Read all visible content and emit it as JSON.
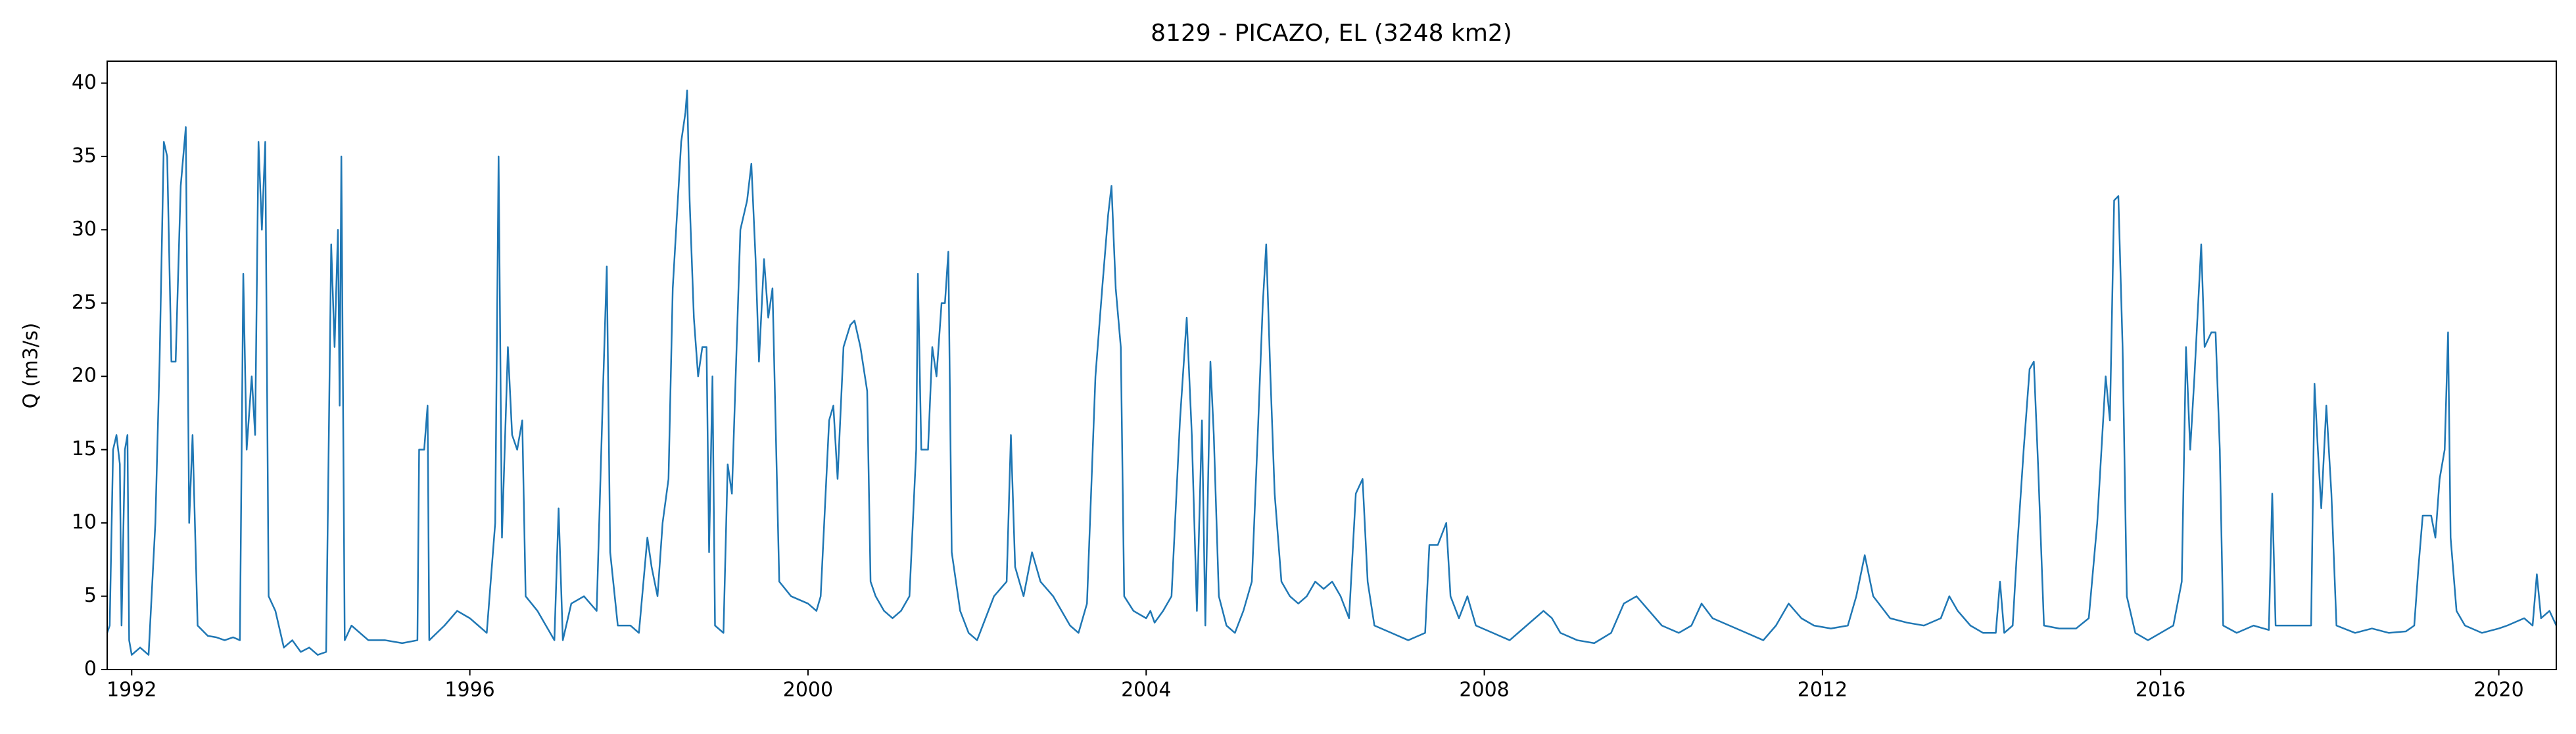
{
  "chart_data": {
    "type": "line",
    "title": "8129 - PICAZO, EL (3248 km2)",
    "y_label": "Q (m3/s)",
    "color": "#1f77b4",
    "xlim": [
      1991.71,
      2020.68
    ],
    "xticks": [
      1992,
      1996,
      2000,
      2004,
      2008,
      2012,
      2016,
      2020
    ],
    "ylim": [
      0,
      41.5
    ],
    "yticks": [
      0,
      5,
      10,
      15,
      20,
      25,
      30,
      35,
      40
    ],
    "grid": false,
    "x": [
      1991.71,
      1991.74,
      1991.78,
      1991.82,
      1991.86,
      1991.88,
      1991.92,
      1991.95,
      1991.97,
      1992.0,
      1992.1,
      1992.2,
      1992.28,
      1992.33,
      1992.38,
      1992.42,
      1992.47,
      1992.52,
      1992.58,
      1992.64,
      1992.68,
      1992.72,
      1992.78,
      1992.9,
      1993.0,
      1993.1,
      1993.2,
      1993.28,
      1993.32,
      1993.36,
      1993.42,
      1993.46,
      1993.5,
      1993.54,
      1993.58,
      1993.62,
      1993.7,
      1993.8,
      1993.9,
      1994.0,
      1994.1,
      1994.2,
      1994.3,
      1994.36,
      1994.4,
      1994.44,
      1994.46,
      1994.48,
      1994.52,
      1994.6,
      1994.8,
      1995.0,
      1995.2,
      1995.38,
      1995.4,
      1995.46,
      1995.5,
      1995.52,
      1995.7,
      1995.85,
      1996.0,
      1996.1,
      1996.2,
      1996.3,
      1996.34,
      1996.38,
      1996.45,
      1996.5,
      1996.56,
      1996.62,
      1996.66,
      1996.8,
      1996.9,
      1997.0,
      1997.05,
      1997.1,
      1997.2,
      1997.35,
      1997.5,
      1997.58,
      1997.62,
      1997.66,
      1997.75,
      1997.9,
      1998.0,
      1998.1,
      1998.15,
      1998.22,
      1998.28,
      1998.35,
      1998.4,
      1998.5,
      1998.55,
      1998.57,
      1998.6,
      1998.65,
      1998.7,
      1998.75,
      1998.8,
      1998.83,
      1998.87,
      1998.9,
      1999.0,
      1999.05,
      1999.1,
      1999.2,
      1999.28,
      1999.33,
      1999.38,
      1999.42,
      1999.48,
      1999.53,
      1999.58,
      1999.62,
      1999.66,
      1999.8,
      2000.0,
      2000.1,
      2000.15,
      2000.25,
      2000.3,
      2000.35,
      2000.42,
      2000.5,
      2000.55,
      2000.62,
      2000.7,
      2000.74,
      2000.8,
      2000.9,
      2001.0,
      2001.1,
      2001.2,
      2001.28,
      2001.3,
      2001.34,
      2001.42,
      2001.47,
      2001.52,
      2001.58,
      2001.62,
      2001.66,
      2001.7,
      2001.8,
      2001.9,
      2002.0,
      2002.1,
      2002.2,
      2002.35,
      2002.4,
      2002.45,
      2002.55,
      2002.65,
      2002.75,
      2002.9,
      2003.0,
      2003.1,
      2003.2,
      2003.3,
      2003.4,
      2003.48,
      2003.55,
      2003.59,
      2003.64,
      2003.7,
      2003.74,
      2003.85,
      2004.0,
      2004.05,
      2004.1,
      2004.2,
      2004.3,
      2004.4,
      2004.48,
      2004.54,
      2004.6,
      2004.66,
      2004.7,
      2004.76,
      2004.8,
      2004.86,
      2004.95,
      2005.05,
      2005.15,
      2005.25,
      2005.32,
      2005.38,
      2005.42,
      2005.47,
      2005.52,
      2005.6,
      2005.7,
      2005.8,
      2005.9,
      2006.0,
      2006.1,
      2006.2,
      2006.3,
      2006.4,
      2006.48,
      2006.56,
      2006.62,
      2006.7,
      2006.9,
      2007.1,
      2007.3,
      2007.35,
      2007.45,
      2007.55,
      2007.6,
      2007.7,
      2007.8,
      2007.9,
      2008.1,
      2008.3,
      2008.5,
      2008.7,
      2008.8,
      2008.9,
      2009.1,
      2009.3,
      2009.5,
      2009.65,
      2009.8,
      2009.95,
      2010.1,
      2010.3,
      2010.45,
      2010.57,
      2010.7,
      2010.9,
      2011.1,
      2011.3,
      2011.45,
      2011.6,
      2011.75,
      2011.9,
      2012.1,
      2012.3,
      2012.4,
      2012.5,
      2012.6,
      2012.8,
      2013.0,
      2013.2,
      2013.4,
      2013.5,
      2013.6,
      2013.75,
      2013.9,
      2014.05,
      2014.1,
      2014.15,
      2014.25,
      2014.3,
      2014.38,
      2014.45,
      2014.5,
      2014.55,
      2014.62,
      2014.8,
      2015.0,
      2015.15,
      2015.25,
      2015.3,
      2015.35,
      2015.4,
      2015.45,
      2015.5,
      2015.55,
      2015.6,
      2015.7,
      2015.85,
      2016.0,
      2016.15,
      2016.25,
      2016.3,
      2016.35,
      2016.4,
      2016.48,
      2016.52,
      2016.6,
      2016.65,
      2016.7,
      2016.74,
      2016.9,
      2017.1,
      2017.28,
      2017.32,
      2017.36,
      2017.5,
      2017.7,
      2017.78,
      2017.82,
      2017.86,
      2017.9,
      2017.96,
      2018.02,
      2018.08,
      2018.3,
      2018.5,
      2018.7,
      2018.9,
      2019.0,
      2019.05,
      2019.1,
      2019.2,
      2019.25,
      2019.3,
      2019.36,
      2019.4,
      2019.43,
      2019.5,
      2019.6,
      2019.8,
      2020.0,
      2020.1,
      2020.3,
      2020.4,
      2020.45,
      2020.5,
      2020.6,
      2020.68
    ],
    "values": [
      2.5,
      3,
      15,
      16,
      14,
      3,
      15,
      16,
      2,
      1,
      1.5,
      1.0,
      10,
      21,
      36,
      35,
      21,
      21,
      33,
      37,
      10,
      16,
      3,
      2.3,
      2.2,
      2,
      2.2,
      2,
      27,
      15,
      20,
      16,
      36,
      30,
      36,
      5,
      4,
      1.5,
      2,
      1.2,
      1.5,
      1.0,
      1.2,
      29,
      22,
      30,
      18,
      35,
      2,
      3,
      2,
      2,
      1.8,
      2,
      15,
      15,
      18,
      2,
      3,
      4,
      3.5,
      3,
      2.5,
      10,
      35,
      9,
      22,
      16,
      15,
      17,
      5,
      4,
      3,
      2,
      11,
      2,
      4.5,
      5,
      4,
      20,
      27.5,
      8,
      3,
      3,
      2.5,
      9,
      7,
      5,
      10,
      13,
      26,
      36,
      38,
      39.5,
      32,
      24,
      20,
      22,
      22,
      8,
      20,
      3,
      2.5,
      14,
      12,
      30,
      32,
      34.5,
      28,
      21,
      28,
      24,
      26,
      16,
      6,
      5,
      4.5,
      4,
      5,
      17,
      18,
      13,
      22,
      23.5,
      23.8,
      22,
      19,
      6,
      5,
      4,
      3.5,
      4,
      5,
      15,
      27,
      15,
      15,
      22,
      20,
      25,
      25,
      28.5,
      8,
      4,
      2.5,
      2,
      3.5,
      5,
      6,
      16,
      7,
      5,
      8,
      6,
      5,
      4,
      3,
      2.5,
      4.5,
      20,
      26,
      31,
      33,
      26,
      22,
      5,
      4,
      3.5,
      4,
      3.2,
      4,
      5,
      17,
      24,
      16,
      4,
      17,
      3,
      21,
      16,
      5,
      3,
      2.5,
      4,
      6,
      16,
      25,
      29,
      20,
      12,
      6,
      5,
      4.5,
      5,
      6,
      5.5,
      6,
      5,
      3.5,
      12,
      13,
      6,
      3,
      2.5,
      2,
      2.5,
      8.5,
      8.5,
      10,
      5,
      3.5,
      5,
      3,
      2.5,
      2,
      3,
      4,
      3.5,
      2.5,
      2,
      1.8,
      2.5,
      4.5,
      5,
      4,
      3,
      2.5,
      3,
      4.5,
      3.5,
      3,
      2.5,
      2,
      3,
      4.5,
      3.5,
      3,
      2.8,
      3,
      5,
      7.8,
      5,
      3.5,
      3.2,
      3,
      3.5,
      5,
      4,
      3,
      2.5,
      2.5,
      6,
      2.5,
      3,
      8,
      15,
      20.5,
      21,
      14,
      3,
      2.8,
      2.8,
      3.5,
      10,
      15,
      20,
      17,
      32,
      32.3,
      22,
      5,
      2.5,
      2,
      2.5,
      3,
      6,
      22,
      15,
      20,
      29,
      22,
      23,
      23,
      15,
      3,
      2.5,
      3,
      2.7,
      12,
      3,
      3,
      3,
      3,
      19.5,
      15,
      11,
      18,
      12,
      3,
      2.5,
      2.8,
      2.5,
      2.6,
      3,
      7,
      10.5,
      10.5,
      9,
      13,
      15,
      23,
      9,
      4,
      3,
      2.5,
      2.8,
      3,
      3.5,
      3,
      6.5,
      3.5,
      4,
      3
    ]
  }
}
